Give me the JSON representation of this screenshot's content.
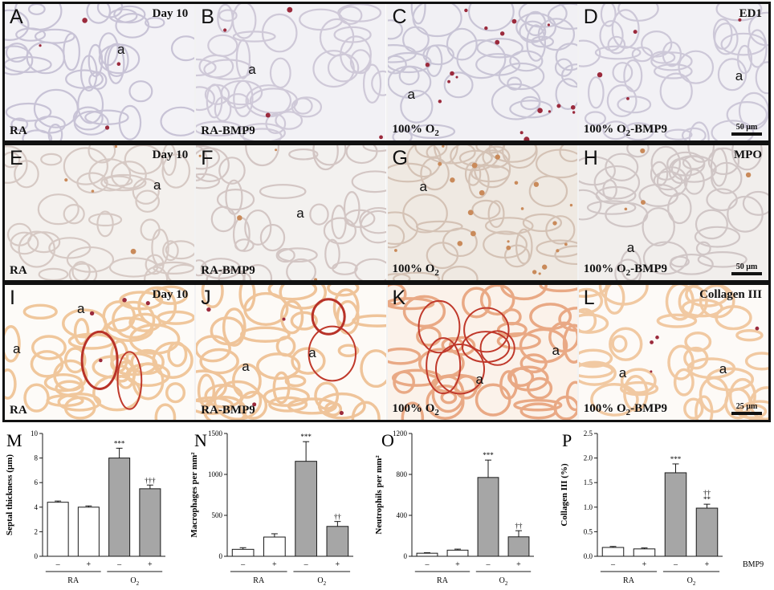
{
  "rows": [
    {
      "day": "Day 10",
      "stain": "ED1",
      "scale": "50 µm",
      "panels": [
        {
          "letter": "A",
          "cond": "RA",
          "sub": "",
          "cond2": "",
          "a": [
            {
              "t": "a",
              "x": 140,
              "y": 47
            }
          ]
        },
        {
          "letter": "B",
          "cond": "RA-BMP9",
          "sub": "",
          "cond2": "",
          "a": [
            {
              "t": "a",
              "x": 65,
              "y": 72
            }
          ]
        },
        {
          "letter": "C",
          "cond": "100% O",
          "sub": "2",
          "cond2": "",
          "a": [
            {
              "t": "a",
              "x": 25,
              "y": 103
            }
          ]
        },
        {
          "letter": "D",
          "cond": "100% O",
          "sub": "2",
          "cond2": "-BMP9",
          "a": [
            {
              "t": "a",
              "x": 195,
              "y": 80
            }
          ]
        }
      ]
    },
    {
      "day": "Day 10",
      "stain": "MPO",
      "scale": "50 µm",
      "panels": [
        {
          "letter": "E",
          "cond": "RA",
          "sub": "",
          "cond2": "",
          "a": [
            {
              "t": "a",
              "x": 185,
              "y": 40
            }
          ]
        },
        {
          "letter": "F",
          "cond": "RA-BMP9",
          "sub": "",
          "cond2": "",
          "a": [
            {
              "t": "a",
              "x": 125,
              "y": 75
            }
          ]
        },
        {
          "letter": "G",
          "cond": "100% O",
          "sub": "2",
          "cond2": "",
          "a": [
            {
              "t": "a",
              "x": 40,
              "y": 42
            }
          ]
        },
        {
          "letter": "H",
          "cond": "100% O",
          "sub": "2",
          "cond2": "-BMP9",
          "a": [
            {
              "t": "a",
              "x": 60,
              "y": 118
            }
          ]
        }
      ]
    },
    {
      "day": "Day 10",
      "stain": "Collagen III",
      "scale": "25 µm",
      "panels": [
        {
          "letter": "I",
          "cond": "RA",
          "sub": "",
          "cond2": "",
          "a": [
            {
              "t": "a",
              "x": 90,
              "y": 20
            },
            {
              "t": "a",
              "x": 10,
              "y": 70
            }
          ]
        },
        {
          "letter": "J",
          "cond": "RA-BMP9",
          "sub": "",
          "cond2": "",
          "a": [
            {
              "t": "a",
              "x": 140,
              "y": 75
            },
            {
              "t": "a",
              "x": 57,
              "y": 92
            }
          ]
        },
        {
          "letter": "K",
          "cond": "100% O",
          "sub": "2",
          "cond2": "",
          "a": [
            {
              "t": "a",
              "x": 205,
              "y": 72
            },
            {
              "t": "a",
              "x": 110,
              "y": 108
            }
          ]
        },
        {
          "letter": "L",
          "cond": "100% O",
          "sub": "2",
          "cond2": "-BMP9",
          "a": [
            {
              "t": "a",
              "x": 50,
              "y": 100
            },
            {
              "t": "a",
              "x": 175,
              "y": 95
            }
          ]
        }
      ]
    }
  ],
  "colors": {
    "white_bar": "#ffffff",
    "grey_bar": "#a6a6a6",
    "stroke": "#1a1a1a"
  },
  "chart_data": [
    {
      "type": "bar",
      "letter": "M",
      "ylabel": "Septal thickness (µm)",
      "ylim": [
        0,
        10
      ],
      "ticks": [
        "0",
        "2",
        "4",
        "6",
        "8",
        "10"
      ],
      "tick_values": [
        0,
        2,
        4,
        6,
        8,
        10
      ],
      "values": [
        4.4,
        4.0,
        8.0,
        5.5
      ],
      "errors": [
        0.1,
        0.1,
        0.8,
        0.3
      ],
      "annot": [
        "",
        "",
        "***",
        "†††"
      ],
      "group_signs": [
        "–",
        "+",
        "–",
        "+"
      ],
      "groups": [
        "RA",
        "O2"
      ]
    },
    {
      "type": "bar",
      "letter": "N",
      "ylabel": "Macrophages per mm²",
      "ylim": [
        0,
        1500
      ],
      "ticks": [
        "0",
        "500",
        "1000",
        "1500"
      ],
      "tick_values": [
        0,
        500,
        1000,
        1500
      ],
      "values": [
        85,
        235,
        1160,
        365
      ],
      "errors": [
        20,
        40,
        240,
        60
      ],
      "annot": [
        "",
        "",
        "***",
        "††"
      ],
      "group_signs": [
        "–",
        "+",
        "–",
        "+"
      ],
      "groups": [
        "RA",
        "O2"
      ]
    },
    {
      "type": "bar",
      "letter": "O",
      "ylabel": "Neutrophils per mm²",
      "ylim": [
        0,
        1200
      ],
      "ticks": [
        "0",
        "400",
        "800",
        "1200"
      ],
      "tick_values": [
        0,
        400,
        800,
        1200
      ],
      "values": [
        30,
        60,
        770,
        190
      ],
      "errors": [
        5,
        10,
        170,
        60
      ],
      "annot": [
        "",
        "",
        "***",
        "††"
      ],
      "group_signs": [
        "–",
        "+",
        "–",
        "+"
      ],
      "groups": [
        "RA",
        "O2"
      ]
    },
    {
      "type": "bar",
      "letter": "P",
      "ylabel": "Collagen III (%)",
      "ylim": [
        0,
        2.5
      ],
      "ticks": [
        "0.0",
        "0.5",
        "1.0",
        "1.5",
        "2.0",
        "2.5"
      ],
      "tick_values": [
        0,
        0.5,
        1.0,
        1.5,
        2.0,
        2.5
      ],
      "values": [
        0.18,
        0.15,
        1.7,
        0.98
      ],
      "errors": [
        0.02,
        0.02,
        0.18,
        0.08
      ],
      "annot": [
        "",
        "",
        "***",
        "††\n**"
      ],
      "group_signs": [
        "–",
        "+",
        "–",
        "+"
      ],
      "groups": [
        "RA",
        "O2"
      ],
      "row_label": "BMP9"
    }
  ]
}
